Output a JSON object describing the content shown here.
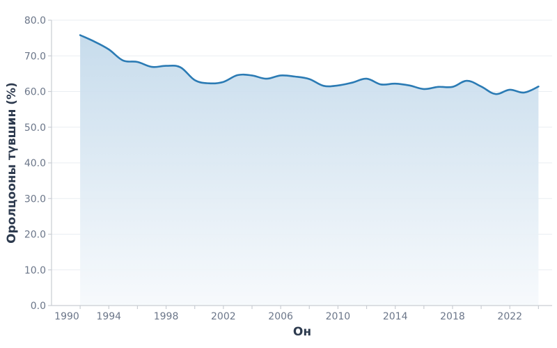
{
  "chart_data": {
    "type": "area",
    "title": "",
    "xlabel": "Он",
    "ylabel": "Оролцооны түвшин (%)",
    "x": [
      1992,
      1993,
      1994,
      1995,
      1996,
      1997,
      1998,
      1999,
      2000,
      2001,
      2002,
      2003,
      2004,
      2005,
      2006,
      2007,
      2008,
      2009,
      2010,
      2011,
      2012,
      2013,
      2014,
      2015,
      2016,
      2017,
      2018,
      2019,
      2020,
      2021,
      2022,
      2023,
      2024
    ],
    "series": [
      {
        "name": "Оролцооны түвшин (%)",
        "values": [
          75.8,
          74.0,
          71.8,
          68.7,
          68.3,
          66.9,
          67.2,
          66.8,
          63.2,
          62.3,
          62.7,
          64.6,
          64.5,
          63.6,
          64.5,
          64.2,
          63.5,
          61.6,
          61.7,
          62.5,
          63.6,
          62.0,
          62.2,
          61.7,
          60.7,
          61.3,
          61.3,
          63.0,
          61.4,
          59.3,
          60.5,
          59.7,
          61.4
        ]
      }
    ],
    "xlim": [
      1990,
      2025
    ],
    "ylim": [
      0,
      80
    ],
    "x_ticks": [
      1990,
      1992,
      1994,
      1996,
      1998,
      2000,
      2002,
      2004,
      2006,
      2008,
      2010,
      2012,
      2014,
      2016,
      2018,
      2020,
      2022,
      2024
    ],
    "x_tick_labels": [
      "1990",
      "1994",
      "1998",
      "2002",
      "2006",
      "2010",
      "2014",
      "2018",
      "2022"
    ],
    "y_ticks": [
      0,
      10,
      20,
      30,
      40,
      50,
      60,
      70,
      80
    ],
    "y_tick_labels": [
      "0.0",
      "10.0",
      "20.0",
      "30.0",
      "40.0",
      "50.0",
      "60.0",
      "70.0",
      "80.0"
    ],
    "grid": "horizontal",
    "legend": "none",
    "colors": {
      "line": "#2b7bb4",
      "fill_top": "#c4daeb",
      "fill_bottom": "#f6f9fc",
      "grid": "#e9edf2",
      "axis": "#c9cdd3"
    }
  }
}
